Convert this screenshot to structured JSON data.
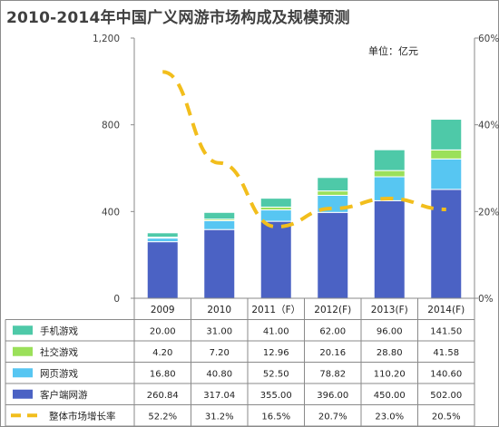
{
  "title": "2010-2014年中国广义网游市场构成及规模预测",
  "unit": "单位：亿元",
  "chart_data": {
    "type": "bar",
    "stacked": true,
    "categories": [
      "2009",
      "2010",
      "2011（F）",
      "2012(F)",
      "2013(F)",
      "2014(F)"
    ],
    "series": [
      {
        "name": "客户端网游",
        "values": [
          260.84,
          317.04,
          355.0,
          396.0,
          450.0,
          502.0
        ],
        "labels": [
          "260.84",
          "317.04",
          "355.00",
          "396.00",
          "450.00",
          "502.00"
        ],
        "color": "#4b62c4",
        "marker": "box"
      },
      {
        "name": "网页游戏",
        "values": [
          16.8,
          40.8,
          52.5,
          78.82,
          110.2,
          140.6
        ],
        "labels": [
          "16.80",
          "40.80",
          "52.50",
          "78.82",
          "110.20",
          "140.60"
        ],
        "color": "#57c6f2",
        "marker": "box"
      },
      {
        "name": "社交游戏",
        "values": [
          4.2,
          7.2,
          12.96,
          20.16,
          28.8,
          41.58
        ],
        "labels": [
          "4.20",
          "7.20",
          "12.96",
          "20.16",
          "28.80",
          "41.58"
        ],
        "color": "#9be05a",
        "marker": "box"
      },
      {
        "name": "手机游戏",
        "values": [
          20.0,
          31.0,
          41.0,
          62.0,
          96.0,
          141.5
        ],
        "labels": [
          "20.00",
          "31.00",
          "41.00",
          "62.00",
          "96.00",
          "141.50"
        ],
        "color": "#4ec9a8",
        "marker": "box"
      },
      {
        "name": "整体市场增长率",
        "values": [
          52.2,
          31.2,
          16.5,
          20.7,
          23.0,
          20.5
        ],
        "labels": [
          "52.2%",
          "31.2%",
          "16.5%",
          "20.7%",
          "23.0%",
          "20.5%"
        ],
        "color": "#f2be1c",
        "marker": "dash",
        "axis": "right",
        "line_type": "dashed"
      }
    ],
    "table_row_order": [
      "手机游戏",
      "社交游戏",
      "网页游戏",
      "客户端网游",
      "整体市场增长率"
    ],
    "y_left": {
      "min": 0,
      "max": 1200,
      "ticks": [
        "0",
        "400",
        "800",
        "1,200"
      ],
      "tick_values": [
        0,
        400,
        800,
        1200
      ]
    },
    "y_right": {
      "min": 0,
      "max": 60,
      "ticks": [
        "0%",
        "20%",
        "40%",
        "60%"
      ],
      "tick_values": [
        0,
        20,
        40,
        60
      ]
    },
    "grid": false,
    "legend": "data-table"
  }
}
